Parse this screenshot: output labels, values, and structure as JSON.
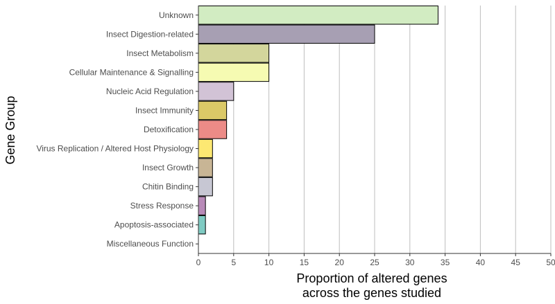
{
  "chart_data": {
    "type": "bar",
    "orientation": "horizontal",
    "categories": [
      "Unknown",
      "Insect Digestion-related",
      "Insect Metabolism",
      "Cellular Maintenance & Signalling",
      "Nucleic Acid Regulation",
      "Insect Immunity",
      "Detoxification",
      "Virus Replication / Altered Host Physiology",
      "Insect Growth",
      "Chitin Binding",
      "Stress Response",
      "Apoptosis-associated",
      "Miscellaneous Function"
    ],
    "values": [
      34,
      25,
      10,
      10,
      5,
      4,
      4,
      2,
      2,
      2,
      1,
      1,
      0
    ],
    "colors": [
      "#d2ecc2",
      "#a79fb3",
      "#d3d69c",
      "#f6fbb2",
      "#d2c3d6",
      "#dbc967",
      "#ec8b87",
      "#fde872",
      "#c8b595",
      "#c7c7d3",
      "#b88ab8",
      "#7fcbc3",
      "#cccccc"
    ],
    "xlabel_line1": "Proportion of altered genes",
    "xlabel_line2": "across the genes studied",
    "ylabel": "Gene Group",
    "xlim": [
      0,
      50
    ],
    "xticks": [
      "0",
      "5",
      "10",
      "15",
      "20",
      "25",
      "30",
      "35",
      "40",
      "45",
      "50"
    ],
    "grid": "vertical major gridlines"
  }
}
